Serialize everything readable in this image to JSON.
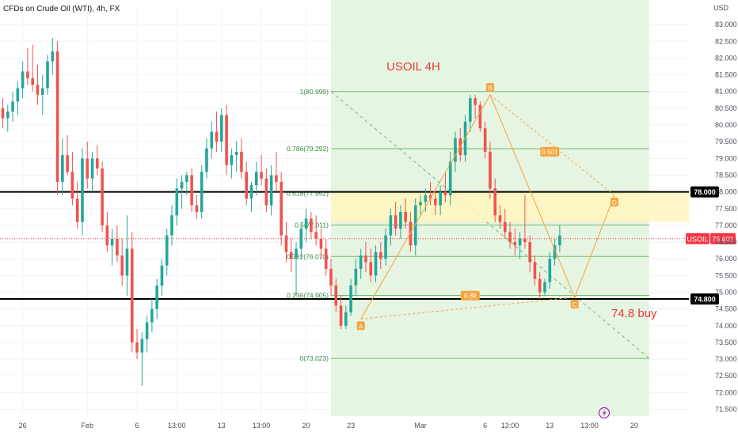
{
  "header": {
    "symbol_title": "CFDs on Crude Oil (WTI), 4h, FX",
    "currency": "USD"
  },
  "colors": {
    "up": "#26a69a",
    "down": "#ef5350",
    "fib_zone": "#e6f4e2",
    "fib_line": "#6cbf6c",
    "pattern": "#f5a53c",
    "level_line": "#000000",
    "annotation_red": "#e53935",
    "supply_zone": "#fff6bf",
    "price_tag": "#f23645"
  },
  "chart_data": {
    "type": "candlestick",
    "title": "CFDs on Crude Oil (WTI), 4h, FX",
    "ylim": [
      71.3,
      83.5
    ],
    "y_ticks": [
      "83.000",
      "82.500",
      "82.000",
      "81.500",
      "81.000",
      "80.500",
      "80.000",
      "79.500",
      "79.000",
      "78.500",
      "78.000",
      "77.500",
      "77.000",
      "76.500",
      "76.000",
      "75.500",
      "75.000",
      "74.500",
      "74.000",
      "73.500",
      "73.000",
      "72.500",
      "72.000",
      "71.500"
    ],
    "x_ticks": [
      {
        "label": "26",
        "i": 4
      },
      {
        "label": "Feb",
        "i": 17
      },
      {
        "label": "6",
        "i": 27
      },
      {
        "label": "13:00",
        "i": 35
      },
      {
        "label": "13",
        "i": 44
      },
      {
        "label": "13:00",
        "i": 52
      },
      {
        "label": "20",
        "i": 61
      },
      {
        "label": "23",
        "i": 70
      },
      {
        "label": "Mar",
        "i": 84
      },
      {
        "label": "6",
        "i": 97
      },
      {
        "label": "13:00",
        "i": 102
      },
      {
        "label": "13",
        "i": 110
      },
      {
        "label": "13:00",
        "i": 118
      },
      {
        "label": "20",
        "i": 127
      }
    ],
    "candles": [
      [
        80.5,
        80.8,
        79.9,
        80.2
      ],
      [
        80.2,
        80.6,
        79.8,
        80.4
      ],
      [
        80.4,
        81.0,
        80.1,
        80.7
      ],
      [
        80.7,
        81.3,
        80.3,
        81.1
      ],
      [
        81.1,
        81.9,
        80.8,
        81.6
      ],
      [
        81.6,
        82.3,
        81.2,
        81.4
      ],
      [
        81.4,
        82.4,
        81.0,
        81.2
      ],
      [
        81.2,
        81.8,
        80.6,
        80.9
      ],
      [
        80.9,
        81.5,
        80.3,
        81.1
      ],
      [
        81.1,
        82.1,
        80.9,
        81.9
      ],
      [
        81.9,
        82.6,
        81.5,
        82.2
      ],
      [
        82.2,
        82.5,
        77.9,
        78.3
      ],
      [
        78.3,
        79.6,
        77.9,
        79.1
      ],
      [
        79.1,
        79.7,
        78.5,
        78.6
      ],
      [
        78.6,
        79.2,
        77.6,
        77.8
      ],
      [
        77.8,
        78.3,
        76.9,
        77.1
      ],
      [
        77.1,
        79.3,
        76.7,
        79.0
      ],
      [
        79.0,
        79.5,
        78.1,
        78.4
      ],
      [
        78.4,
        79.2,
        78.0,
        79.0
      ],
      [
        79.0,
        79.4,
        78.5,
        78.7
      ],
      [
        78.7,
        78.9,
        76.8,
        77.0
      ],
      [
        77.0,
        77.4,
        76.2,
        76.4
      ],
      [
        76.4,
        76.9,
        75.8,
        76.6
      ],
      [
        76.6,
        77.0,
        75.9,
        76.1
      ],
      [
        76.1,
        76.6,
        75.2,
        75.5
      ],
      [
        75.5,
        77.3,
        74.9,
        76.3
      ],
      [
        76.3,
        76.8,
        73.2,
        73.5
      ],
      [
        73.5,
        73.9,
        73.0,
        73.2
      ],
      [
        73.2,
        73.8,
        72.2,
        73.6
      ],
      [
        73.6,
        74.3,
        73.2,
        74.1
      ],
      [
        74.1,
        74.8,
        73.8,
        74.5
      ],
      [
        74.5,
        75.4,
        74.2,
        75.2
      ],
      [
        75.2,
        76.0,
        74.9,
        75.8
      ],
      [
        75.8,
        76.9,
        75.5,
        76.7
      ],
      [
        76.7,
        77.6,
        76.4,
        77.3
      ],
      [
        77.3,
        78.4,
        77.0,
        78.1
      ],
      [
        78.1,
        78.5,
        77.5,
        78.3
      ],
      [
        78.3,
        78.6,
        77.9,
        78.5
      ],
      [
        78.5,
        78.7,
        77.4,
        77.6
      ],
      [
        77.6,
        77.9,
        77.2,
        77.4
      ],
      [
        77.4,
        78.8,
        77.2,
        78.6
      ],
      [
        78.6,
        79.6,
        78.4,
        79.3
      ],
      [
        79.3,
        80.1,
        79.0,
        79.8
      ],
      [
        79.8,
        80.4,
        79.2,
        79.5
      ],
      [
        79.5,
        80.5,
        79.2,
        80.3
      ],
      [
        80.3,
        80.6,
        78.5,
        78.8
      ],
      [
        78.8,
        79.3,
        78.4,
        79.1
      ],
      [
        79.1,
        79.5,
        78.6,
        79.2
      ],
      [
        79.2,
        79.6,
        78.4,
        78.6
      ],
      [
        78.6,
        78.9,
        77.6,
        77.8
      ],
      [
        77.8,
        78.3,
        77.4,
        78.2
      ],
      [
        78.2,
        78.9,
        77.9,
        78.6
      ],
      [
        78.6,
        79.1,
        78.2,
        78.4
      ],
      [
        78.4,
        78.7,
        77.4,
        77.6
      ],
      [
        77.6,
        78.8,
        77.3,
        78.5
      ],
      [
        78.5,
        79.2,
        78.0,
        78.3
      ],
      [
        78.3,
        78.6,
        76.4,
        76.7
      ],
      [
        76.7,
        77.1,
        75.9,
        76.2
      ],
      [
        76.2,
        76.6,
        75.6,
        76.0
      ],
      [
        76.0,
        76.5,
        74.9,
        76.3
      ],
      [
        76.3,
        77.1,
        76.0,
        76.9
      ],
      [
        76.9,
        77.5,
        76.5,
        77.2
      ],
      [
        77.2,
        77.4,
        76.6,
        76.8
      ],
      [
        76.8,
        77.3,
        76.4,
        76.6
      ],
      [
        76.6,
        76.9,
        76.0,
        76.3
      ],
      [
        76.3,
        76.6,
        75.5,
        75.7
      ],
      [
        75.7,
        76.0,
        74.9,
        75.2
      ],
      [
        75.2,
        75.4,
        74.4,
        74.6
      ],
      [
        74.6,
        74.9,
        73.9,
        74.0
      ],
      [
        74.0,
        74.6,
        73.9,
        74.4
      ],
      [
        74.4,
        75.4,
        74.3,
        75.2
      ],
      [
        75.2,
        76.0,
        74.9,
        75.7
      ],
      [
        75.7,
        76.3,
        75.4,
        76.1
      ],
      [
        76.1,
        76.5,
        75.6,
        75.9
      ],
      [
        75.9,
        76.3,
        75.3,
        75.5
      ],
      [
        75.5,
        76.4,
        75.3,
        76.2
      ],
      [
        76.2,
        76.5,
        75.7,
        76.0
      ],
      [
        76.0,
        76.9,
        75.8,
        76.7
      ],
      [
        76.7,
        77.5,
        76.4,
        77.3
      ],
      [
        77.3,
        77.7,
        76.7,
        76.9
      ],
      [
        76.9,
        77.6,
        76.6,
        77.4
      ],
      [
        77.4,
        77.8,
        76.9,
        77.1
      ],
      [
        77.1,
        77.4,
        76.2,
        76.4
      ],
      [
        76.4,
        77.8,
        76.1,
        77.6
      ],
      [
        77.6,
        77.9,
        77.3,
        77.7
      ],
      [
        77.7,
        78.1,
        77.4,
        77.9
      ],
      [
        77.9,
        78.3,
        77.6,
        77.8
      ],
      [
        77.8,
        78.1,
        77.3,
        77.6
      ],
      [
        77.6,
        78.2,
        77.3,
        78.0
      ],
      [
        78.0,
        78.6,
        77.7,
        77.9
      ],
      [
        77.9,
        79.2,
        77.6,
        78.9
      ],
      [
        78.9,
        79.8,
        78.6,
        79.6
      ],
      [
        79.6,
        79.9,
        78.9,
        79.1
      ],
      [
        79.1,
        80.3,
        78.9,
        80.1
      ],
      [
        80.1,
        80.9,
        79.8,
        80.8
      ],
      [
        80.8,
        80.9,
        80.2,
        80.6
      ],
      [
        80.6,
        80.7,
        79.8,
        79.9
      ],
      [
        79.9,
        80.1,
        79.0,
        79.2
      ],
      [
        79.2,
        79.5,
        77.8,
        78.1
      ],
      [
        78.1,
        78.4,
        77.1,
        77.3
      ],
      [
        77.3,
        77.6,
        76.9,
        77.1
      ],
      [
        77.1,
        77.5,
        76.6,
        76.8
      ],
      [
        76.8,
        77.1,
        76.3,
        76.5
      ],
      [
        76.5,
        76.9,
        76.1,
        76.4
      ],
      [
        76.4,
        76.8,
        76.0,
        76.6
      ],
      [
        76.6,
        77.9,
        76.3,
        76.5
      ],
      [
        76.5,
        76.7,
        75.6,
        75.9
      ],
      [
        75.9,
        76.1,
        75.2,
        75.4
      ],
      [
        75.4,
        75.6,
        74.8,
        75.0
      ],
      [
        75.0,
        75.4,
        74.9,
        75.3
      ],
      [
        75.3,
        76.2,
        75.1,
        76.0
      ],
      [
        76.0,
        76.6,
        75.8,
        76.4
      ],
      [
        76.4,
        77.0,
        76.2,
        76.7
      ]
    ],
    "fibonacci": {
      "levels": [
        {
          "ratio": "1",
          "price": 80.999,
          "label": "1(80.999)"
        },
        {
          "ratio": "0.786",
          "price": 79.292,
          "label": "0.786(79.292)"
        },
        {
          "ratio": "0.618",
          "price": 77.952,
          "label": "0.618(77.952)"
        },
        {
          "ratio": "0.5",
          "price": 77.011,
          "label": "0.5(77.011)"
        },
        {
          "ratio": "0.382",
          "price": 76.07,
          "label": "0.382(76.070)"
        },
        {
          "ratio": "0.236",
          "price": 74.905,
          "label": "0.236(74.905)"
        },
        {
          "ratio": "0",
          "price": 73.023,
          "label": "0(73.023)"
        }
      ],
      "start_i": 66,
      "end_i": 130
    },
    "pattern_points": [
      {
        "name": "A",
        "i": 72,
        "price": 74.2
      },
      {
        "name": "B",
        "i": 98,
        "price": 80.9
      },
      {
        "name": "C",
        "i": 115,
        "price": 74.85
      },
      {
        "name": "D",
        "i": 123,
        "price": 77.9
      }
    ],
    "ratio_labels": [
      {
        "text": "0.501",
        "i": 110,
        "price": 79.2
      },
      {
        "text": "0.89",
        "i": 94,
        "price": 74.9
      }
    ],
    "horizontal_lines": [
      {
        "price": 78.0,
        "label": "78.000"
      },
      {
        "price": 74.8,
        "label": "74.800"
      }
    ],
    "supply_zone": {
      "top": 78.0,
      "bottom": 77.1
    },
    "current_price": {
      "symbol": "USOIL",
      "price": "76.601",
      "value": 76.601
    },
    "annotations": {
      "title_note": "USOIL 4H",
      "buy_note": "74.8 buy"
    }
  }
}
